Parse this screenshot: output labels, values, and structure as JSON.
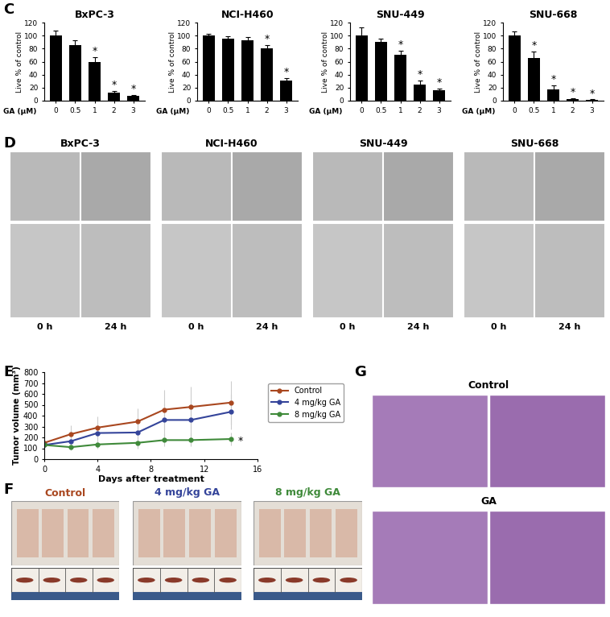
{
  "panel_labels": [
    "C",
    "D",
    "E",
    "F",
    "G"
  ],
  "chart_data": [
    {
      "type": "bar",
      "title": "BxPC-3",
      "xlabel": "GA (μM)",
      "ylabel": "Live % of control",
      "categories": [
        "0",
        "0.5",
        "1",
        "2",
        "3"
      ],
      "values": [
        100,
        85,
        60,
        12,
        7
      ],
      "errors": [
        8,
        8,
        7,
        3,
        2
      ],
      "color": "#000000",
      "ylim": [
        0,
        120
      ],
      "yticks": [
        0,
        20,
        40,
        60,
        80,
        100,
        120
      ],
      "annotations": [
        {
          "category": "1",
          "text": "*"
        },
        {
          "category": "2",
          "text": "*"
        },
        {
          "category": "3",
          "text": "*"
        }
      ]
    },
    {
      "type": "bar",
      "title": "NCI-H460",
      "xlabel": "GA (μM)",
      "ylabel": "Live % of control",
      "categories": [
        "0",
        "0.5",
        "1",
        "2",
        "3"
      ],
      "values": [
        100,
        95,
        93,
        80,
        31
      ],
      "errors": [
        3,
        4,
        5,
        5,
        4
      ],
      "color": "#000000",
      "ylim": [
        0,
        120
      ],
      "yticks": [
        0,
        20,
        40,
        60,
        80,
        100,
        120
      ],
      "annotations": [
        {
          "category": "2",
          "text": "*"
        },
        {
          "category": "3",
          "text": "*"
        }
      ]
    },
    {
      "type": "bar",
      "title": "SNU-449",
      "xlabel": "GA (μM)",
      "ylabel": "Live % of control",
      "categories": [
        "0",
        "0.5",
        "1",
        "2",
        "3"
      ],
      "values": [
        100,
        90,
        70,
        25,
        16
      ],
      "errors": [
        12,
        5,
        7,
        6,
        3
      ],
      "color": "#000000",
      "ylim": [
        0,
        120
      ],
      "yticks": [
        0,
        20,
        40,
        60,
        80,
        100,
        120
      ],
      "annotations": [
        {
          "category": "1",
          "text": "*"
        },
        {
          "category": "2",
          "text": "*"
        },
        {
          "category": "3",
          "text": "*"
        }
      ]
    },
    {
      "type": "bar",
      "title": "SNU-668",
      "xlabel": "GA (μM)",
      "ylabel": "Live % of control",
      "categories": [
        "0",
        "0.5",
        "1",
        "2",
        "3"
      ],
      "values": [
        100,
        66,
        17,
        2,
        1
      ],
      "errors": [
        6,
        10,
        7,
        2,
        1
      ],
      "color": "#000000",
      "ylim": [
        0,
        120
      ],
      "yticks": [
        0,
        20,
        40,
        60,
        80,
        100,
        120
      ],
      "annotations": [
        {
          "category": "0.5",
          "text": "*"
        },
        {
          "category": "1",
          "text": "*"
        },
        {
          "category": "2",
          "text": "*"
        },
        {
          "category": "3",
          "text": "*"
        }
      ]
    },
    {
      "type": "line",
      "xlabel": "Days after treatment",
      "ylabel": "Tumor volume (mm³)",
      "x": [
        0,
        2,
        4,
        7,
        9,
        11,
        14
      ],
      "series": [
        {
          "name": "Control",
          "color": "#a9471f",
          "marker": "o",
          "values": [
            150,
            230,
            290,
            345,
            455,
            480,
            520
          ],
          "errors": [
            20,
            80,
            100,
            120,
            180,
            190,
            200
          ]
        },
        {
          "name": "4 mg/kg GA",
          "color": "#34449a",
          "marker": "o",
          "values": [
            130,
            165,
            240,
            245,
            360,
            360,
            435
          ],
          "errors": [
            20,
            60,
            90,
            100,
            150,
            150,
            160
          ]
        },
        {
          "name": "8 mg/kg GA",
          "color": "#3f8a3a",
          "marker": "o",
          "values": [
            130,
            110,
            135,
            150,
            175,
            175,
            185
          ],
          "errors": [
            20,
            30,
            40,
            50,
            60,
            60,
            60
          ]
        }
      ],
      "xlim": [
        0,
        16
      ],
      "xticks": [
        0,
        4,
        8,
        12,
        16
      ],
      "ylim": [
        0,
        800
      ],
      "yticks": [
        0,
        100,
        200,
        300,
        400,
        500,
        600,
        700,
        800
      ],
      "legend": "right",
      "annotations": [
        {
          "series": "8 mg/kg GA",
          "x": 14,
          "text": "*"
        }
      ]
    }
  ],
  "image_panels": {
    "D": {
      "groups": [
        "BxPC-3",
        "NCI-H460",
        "SNU-449",
        "SNU-668"
      ],
      "times": [
        "0 h",
        "24 h"
      ]
    },
    "F": {
      "groups": [
        "Control",
        "4 mg/kg GA",
        "8 mg/kg GA"
      ]
    },
    "G": {
      "groups": [
        "Control",
        "GA"
      ]
    }
  }
}
